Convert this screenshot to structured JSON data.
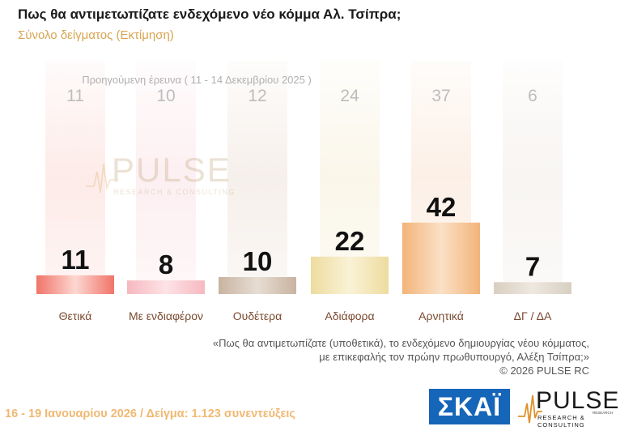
{
  "title": "Πως θα αντιμετωπίζατε ενδεχόμενο νέο κόμμα Αλ. Τσίπρα;",
  "subtitle": "Σύνολο δείγματος  (Εκτίμηση)",
  "previous_label": "Προηγούμενη έρευνα ( 11 - 14 Δεκεμβρίου 2025 )",
  "watermark": {
    "name": "PULSE",
    "sub": "RESEARCH & CONSULTING"
  },
  "quote_lines": [
    "«Πως θα αντιμετωπίζατε (υποθετικά), το ενδεχόμενο δημιουργίας νέου κόμματος,",
    "με επικεφαλής τον πρώην πρωθυπουργό, Αλέξη Τσίπρα;»",
    "©  2026  PULSE RC"
  ],
  "footer": "16 - 19 Ιανουαρίου 2026  /  Δείγμα:  1.123 συνεντεύξεις",
  "logos": {
    "skai": "ΣΚΑΪ",
    "pulse": "PULSE",
    "pulse_sub": "RESEARCH & CONSULTING",
    "pulse_small": "RESEARCH"
  },
  "chart_data": {
    "type": "bar",
    "categories": [
      "Θετικά",
      "Με ενδιαφέρον",
      "Ουδέτερα",
      "Αδιάφορα",
      "Αρνητικά",
      "ΔΓ / ΔΑ"
    ],
    "series": [
      {
        "name": "16 - 19 Ιανουαρίου 2026",
        "values": [
          11,
          8,
          10,
          22,
          42,
          7
        ]
      },
      {
        "name": "Προηγούμενη έρευνα ( 11 - 14 Δεκεμβρίου 2025 )",
        "values": [
          11,
          10,
          12,
          24,
          37,
          6
        ]
      }
    ],
    "ylim": [
      0,
      100
    ],
    "colors": {
      "bars": [
        "#f07468",
        "#f6b8bf",
        "#c8b3a0",
        "#eedc9f",
        "#f2b47a",
        "#d8cfc0"
      ],
      "bars_light": [
        "#fcd7d1",
        "#fde3e7",
        "#e7ddd4",
        "#f9f2d6",
        "#fbe0c6",
        "#eee8e0"
      ],
      "background_bars": [
        "#fce6e3",
        "#fcebee",
        "#f4ece6",
        "#f9f4e4",
        "#fbece0",
        "#f6f2ee"
      ],
      "previous_text": "#bdbdbd",
      "value_text": "#111111",
      "category_text": "#7a4a30"
    }
  }
}
